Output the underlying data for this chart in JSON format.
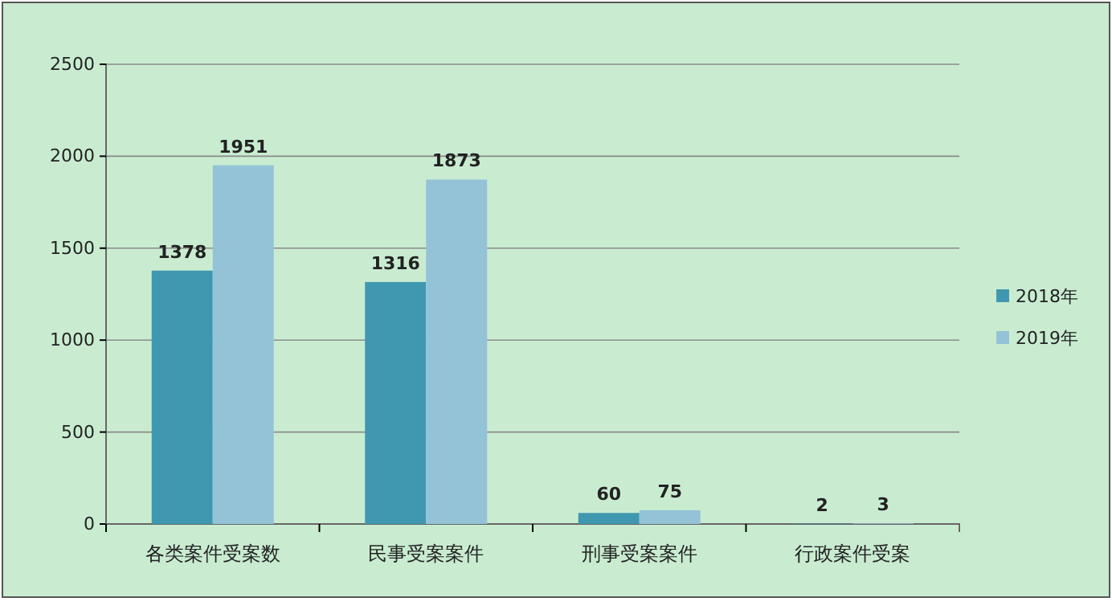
{
  "chart_data": {
    "type": "bar",
    "categories": [
      "各类案件受案数",
      "民事受案案件",
      "刑事受案案件",
      "行政案件受案"
    ],
    "series": [
      {
        "name": "2018年",
        "color": "#3f98b0",
        "values": [
          1378,
          1316,
          60,
          2
        ]
      },
      {
        "name": "2019年",
        "color": "#94c3d8",
        "values": [
          1951,
          1873,
          75,
          3
        ]
      }
    ],
    "ylim": [
      0,
      2500
    ],
    "yticks": [
      0,
      500,
      1000,
      1500,
      2000,
      2500
    ],
    "grid": "y",
    "legend": "right",
    "data_labels": true
  }
}
